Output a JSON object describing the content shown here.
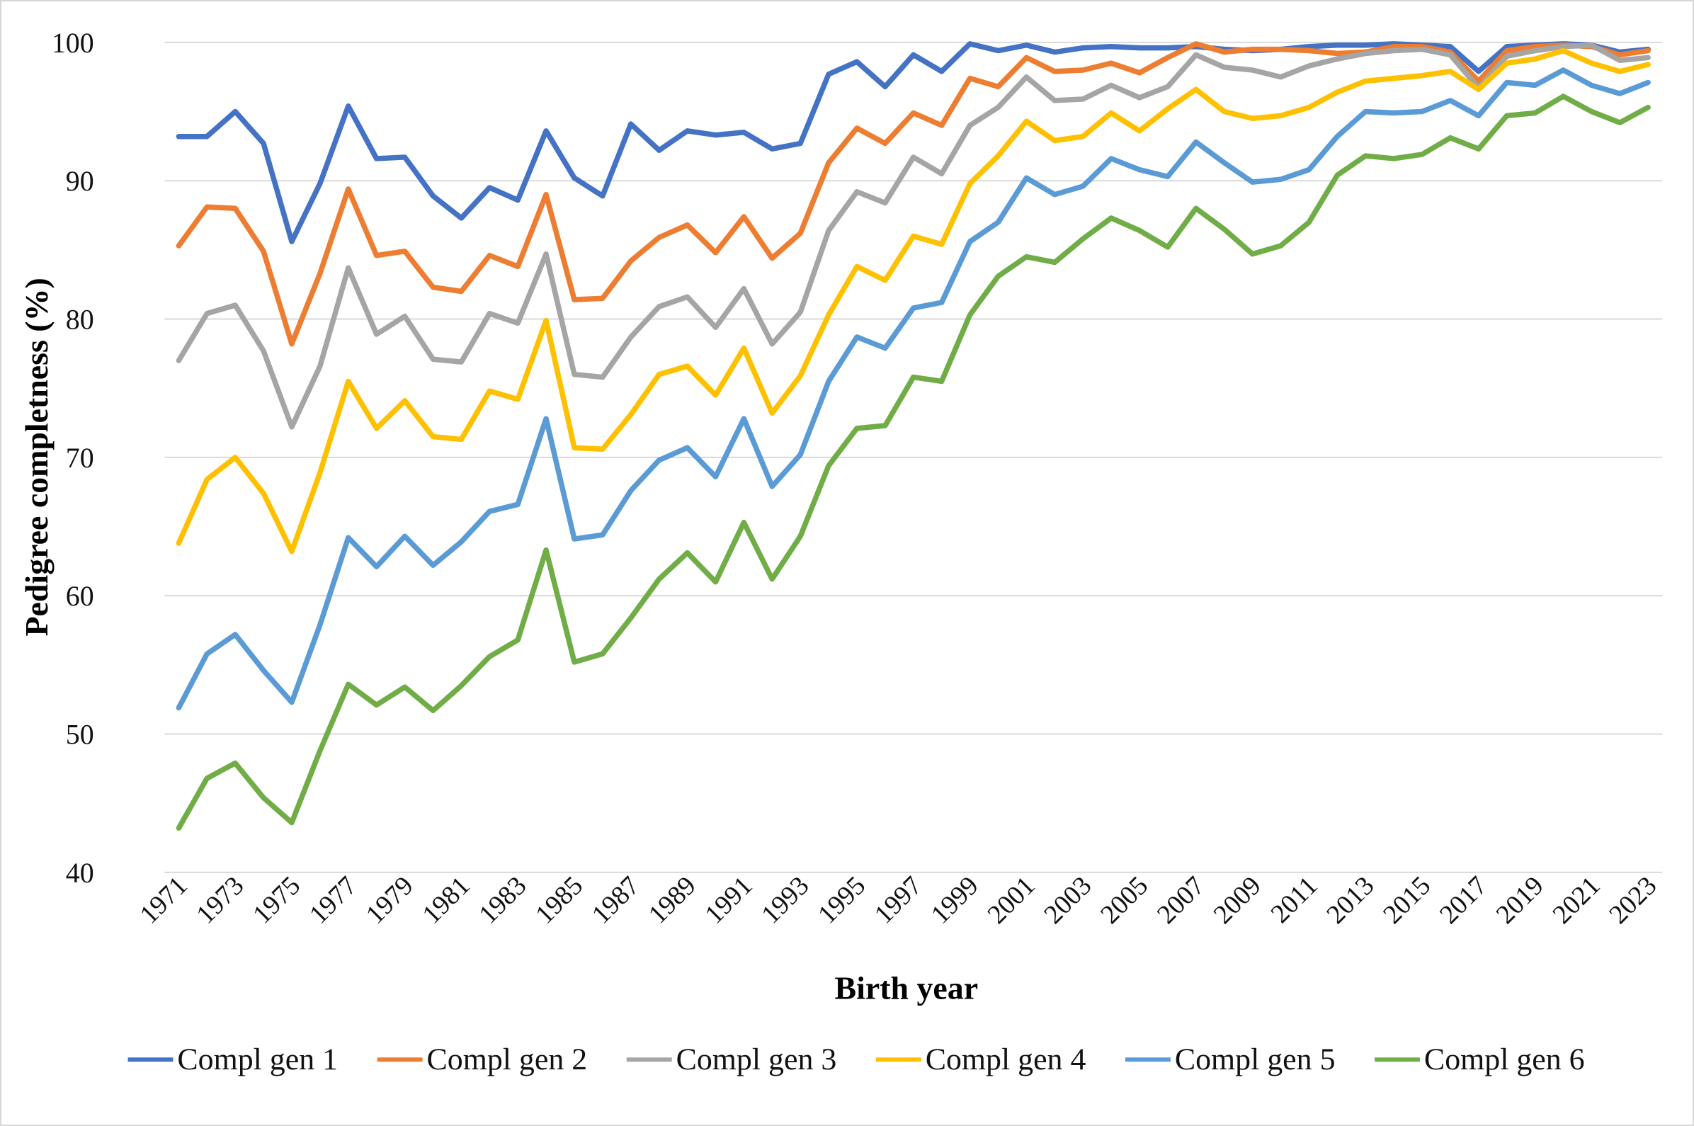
{
  "figure": {
    "background": "#ffffff",
    "border_color": "#d6d6d6"
  },
  "chart_data": {
    "type": "line",
    "title": "",
    "xlabel": "Birth year",
    "ylabel": "Pedigree completness (%)",
    "ylim": [
      40,
      100
    ],
    "y_ticks": [
      40,
      50,
      60,
      70,
      80,
      90,
      100
    ],
    "grid": "horizontal",
    "gridline_color": "#d9d9d9",
    "legend_position": "bottom",
    "x": [
      1971,
      1972,
      1973,
      1974,
      1975,
      1976,
      1977,
      1978,
      1979,
      1980,
      1981,
      1982,
      1983,
      1984,
      1985,
      1986,
      1987,
      1988,
      1989,
      1990,
      1991,
      1992,
      1993,
      1994,
      1995,
      1996,
      1997,
      1998,
      1999,
      2000,
      2001,
      2002,
      2003,
      2004,
      2005,
      2006,
      2007,
      2008,
      2009,
      2010,
      2011,
      2012,
      2013,
      2014,
      2015,
      2016,
      2017,
      2018,
      2019,
      2020,
      2021,
      2022,
      2023
    ],
    "x_tick_labels": [
      "1971",
      "1973",
      "1975",
      "1977",
      "1979",
      "1981",
      "1983",
      "1985",
      "1987",
      "1989",
      "1991",
      "1993",
      "1995",
      "1997",
      "1999",
      "2001",
      "2003",
      "2005",
      "2007",
      "2009",
      "2011",
      "2013",
      "2015",
      "2017",
      "2019",
      "2021",
      "2023"
    ],
    "series": [
      {
        "name": "Compl gen 1",
        "color": "#4472C4",
        "values": [
          93.2,
          93.2,
          95.0,
          92.7,
          85.6,
          89.8,
          95.4,
          91.6,
          91.7,
          88.9,
          87.3,
          89.5,
          88.6,
          93.6,
          90.2,
          88.9,
          94.1,
          92.2,
          93.6,
          93.3,
          93.5,
          92.3,
          92.7,
          97.7,
          98.6,
          96.8,
          99.1,
          97.9,
          99.9,
          99.4,
          99.8,
          99.3,
          99.6,
          99.7,
          99.6,
          99.6,
          99.7,
          99.5,
          99.4,
          99.5,
          99.7,
          99.8,
          99.8,
          99.9,
          99.8,
          99.7,
          97.9,
          99.7,
          99.8,
          99.9,
          99.8,
          99.3,
          99.5
        ]
      },
      {
        "name": "Compl gen 2",
        "color": "#ED7D31",
        "values": [
          85.3,
          88.1,
          88.0,
          84.9,
          78.2,
          83.3,
          89.4,
          84.6,
          84.9,
          82.3,
          82.0,
          84.6,
          83.8,
          89.0,
          81.4,
          81.5,
          84.2,
          85.9,
          86.8,
          84.8,
          87.4,
          84.4,
          86.2,
          91.3,
          93.8,
          92.7,
          94.9,
          94.0,
          97.4,
          96.8,
          98.9,
          97.9,
          98.0,
          98.5,
          97.8,
          98.9,
          99.9,
          99.3,
          99.5,
          99.5,
          99.4,
          99.2,
          99.3,
          99.7,
          99.7,
          99.3,
          97.2,
          99.4,
          99.7,
          99.8,
          99.7,
          99.1,
          99.4
        ]
      },
      {
        "name": "Compl gen 3",
        "color": "#A5A5A5",
        "values": [
          77.0,
          80.4,
          81.0,
          77.7,
          72.2,
          76.6,
          83.7,
          78.9,
          80.2,
          77.1,
          76.9,
          80.4,
          79.7,
          84.7,
          76.0,
          75.8,
          78.7,
          80.9,
          81.6,
          79.4,
          82.2,
          78.2,
          80.5,
          86.4,
          89.2,
          88.4,
          91.7,
          90.5,
          94.0,
          95.3,
          97.5,
          95.8,
          95.9,
          96.9,
          96.0,
          96.8,
          99.1,
          98.2,
          98.0,
          97.5,
          98.3,
          98.8,
          99.2,
          99.4,
          99.5,
          99.1,
          96.7,
          99.0,
          99.4,
          99.7,
          99.8,
          98.7,
          98.9
        ]
      },
      {
        "name": "Compl gen 4",
        "color": "#FFC000",
        "values": [
          63.8,
          68.4,
          70.0,
          67.4,
          63.2,
          68.9,
          75.5,
          72.1,
          74.1,
          71.5,
          71.3,
          74.8,
          74.2,
          79.9,
          70.7,
          70.6,
          73.1,
          76.0,
          76.6,
          74.5,
          77.9,
          73.2,
          75.9,
          80.3,
          83.8,
          82.8,
          86.0,
          85.4,
          89.8,
          91.8,
          94.3,
          92.9,
          93.2,
          94.9,
          93.6,
          95.2,
          96.6,
          95.0,
          94.5,
          94.7,
          95.3,
          96.4,
          97.2,
          97.4,
          97.6,
          97.9,
          96.6,
          98.5,
          98.8,
          99.4,
          98.5,
          97.9,
          98.4
        ]
      },
      {
        "name": "Compl gen 5",
        "color": "#5B9BD5",
        "values": [
          51.9,
          55.8,
          57.2,
          54.6,
          52.3,
          57.9,
          64.2,
          62.1,
          64.3,
          62.2,
          63.9,
          66.1,
          66.6,
          72.8,
          64.1,
          64.4,
          67.6,
          69.8,
          70.7,
          68.6,
          72.8,
          67.9,
          70.2,
          75.5,
          78.7,
          77.9,
          80.8,
          81.2,
          85.6,
          87.0,
          90.2,
          89.0,
          89.6,
          91.6,
          90.8,
          90.3,
          92.8,
          91.3,
          89.9,
          90.1,
          90.8,
          93.2,
          95.0,
          94.9,
          95.0,
          95.8,
          94.7,
          97.1,
          96.9,
          98.0,
          96.9,
          96.3,
          97.1
        ]
      },
      {
        "name": "Compl gen 6",
        "color": "#70AD47",
        "values": [
          43.2,
          46.8,
          47.9,
          45.4,
          43.6,
          48.8,
          53.6,
          52.1,
          53.4,
          51.7,
          53.5,
          55.6,
          56.8,
          63.3,
          55.2,
          55.8,
          58.4,
          61.2,
          63.1,
          61.0,
          65.3,
          61.2,
          64.3,
          69.4,
          72.1,
          72.3,
          75.8,
          75.5,
          80.3,
          83.1,
          84.5,
          84.1,
          85.8,
          87.3,
          86.4,
          85.2,
          88.0,
          86.5,
          84.7,
          85.3,
          87.0,
          90.4,
          91.8,
          91.6,
          91.9,
          93.1,
          92.3,
          94.7,
          94.9,
          96.1,
          95.0,
          94.2,
          95.3
        ]
      }
    ]
  }
}
